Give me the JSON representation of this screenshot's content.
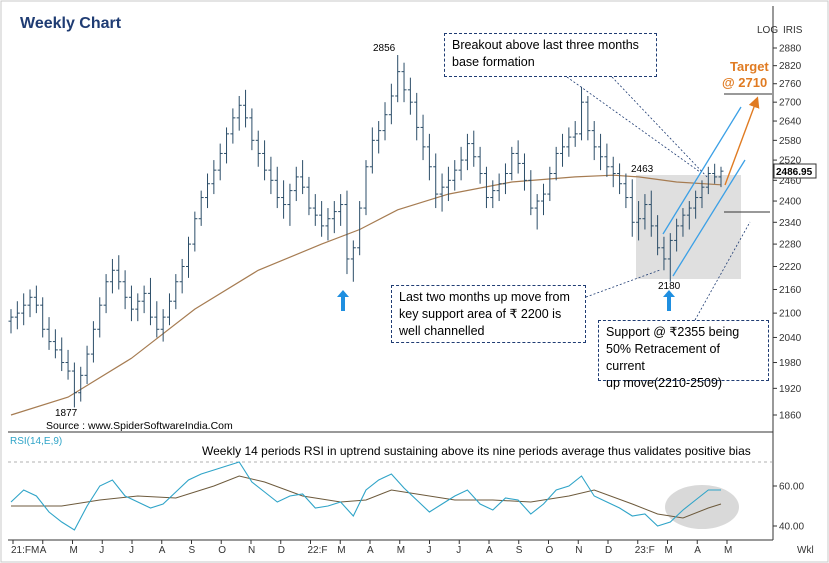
{
  "title": "Weekly Chart",
  "scale_mode": "LOG",
  "source_label": "IRIS",
  "last_price_label": "2486.95",
  "source_text": "Source : www.SpiderSoftwareIndia.Com",
  "rsi_label": "RSI(14,E,9)",
  "rsi_caption": "Weekly 14 periods RSI in uptrend sustaining above its nine periods average thus validates positive bias",
  "period_label": "Wkl",
  "target": {
    "title": "Target",
    "value": "@  2710"
  },
  "annotations": {
    "breakout": [
      "Breakout above last three months",
      "base formation"
    ],
    "up_move": [
      "Last two months up move from",
      "key support area of ₹ 2200 is",
      "well channelled"
    ],
    "support": [
      "Support   @   ₹2355   being",
      "50% Retracement of current",
      "up move(2210-2509)"
    ]
  },
  "price_labels": {
    "high": "2856",
    "low": "1877",
    "swing_high": "2463",
    "swing_low": "2180"
  },
  "colors": {
    "candle": "#2b4d68",
    "ma": "#a67c52",
    "channel": "#3ba0e6",
    "target": "#e07b22",
    "rsi": "#2fa4c8",
    "rsi_avg": "#6d5a3c",
    "arrow": "#1f8fe0",
    "title": "#1f3c73",
    "box_border": "#1f3c73"
  },
  "chart_data": [
    {
      "type": "candlestick",
      "title": "Weekly Chart",
      "scale": "log",
      "ylim": [
        1840,
        2910
      ],
      "y_ticks": [
        1860,
        1920,
        1980,
        2040,
        2100,
        2160,
        2220,
        2280,
        2340,
        2400,
        2460,
        2520,
        2580,
        2640,
        2700,
        2760,
        2820,
        2880
      ],
      "x_ticks": [
        "21:FM",
        "A",
        "M",
        "J",
        "J",
        "A",
        "S",
        "O",
        "N",
        "D",
        "22:F",
        "M",
        "A",
        "M",
        "J",
        "J",
        "A",
        "S",
        "O",
        "N",
        "D",
        "23:F",
        "M",
        "A",
        "M"
      ],
      "key_levels": {
        "high": 2856,
        "low": 1877,
        "swing_high": 2463,
        "swing_low": 2180,
        "support": 2355,
        "target": 2710,
        "last": 2486.95
      },
      "ohlc": [
        [
          1,
          2080,
          2110,
          2050,
          2090
        ],
        [
          2,
          2090,
          2130,
          2060,
          2100
        ],
        [
          3,
          2100,
          2150,
          2070,
          2120
        ],
        [
          4,
          2120,
          2160,
          2090,
          2140
        ],
        [
          5,
          2140,
          2170,
          2100,
          2120
        ],
        [
          6,
          2120,
          2140,
          2040,
          2060
        ],
        [
          7,
          2060,
          2090,
          2010,
          2030
        ],
        [
          8,
          2030,
          2060,
          1990,
          2010
        ],
        [
          9,
          2010,
          2040,
          1960,
          1980
        ],
        [
          10,
          1980,
          2010,
          1940,
          1960
        ],
        [
          11,
          1960,
          1980,
          1877,
          1910
        ],
        [
          12,
          1910,
          1970,
          1890,
          1950
        ],
        [
          13,
          1950,
          2020,
          1930,
          2000
        ],
        [
          14,
          2000,
          2080,
          1980,
          2060
        ],
        [
          15,
          2060,
          2140,
          2040,
          2120
        ],
        [
          16,
          2120,
          2200,
          2100,
          2180
        ],
        [
          17,
          2180,
          2240,
          2150,
          2210
        ],
        [
          18,
          2210,
          2250,
          2160,
          2180
        ],
        [
          19,
          2180,
          2210,
          2110,
          2140
        ],
        [
          20,
          2140,
          2170,
          2080,
          2110
        ],
        [
          21,
          2110,
          2150,
          2080,
          2130
        ],
        [
          22,
          2130,
          2170,
          2100,
          2150
        ],
        [
          23,
          2150,
          2190,
          2070,
          2090
        ],
        [
          24,
          2090,
          2130,
          2040,
          2060
        ],
        [
          25,
          2060,
          2110,
          2030,
          2090
        ],
        [
          26,
          2090,
          2150,
          2070,
          2130
        ],
        [
          27,
          2130,
          2200,
          2110,
          2180
        ],
        [
          28,
          2180,
          2240,
          2150,
          2220
        ],
        [
          29,
          2220,
          2300,
          2190,
          2280
        ],
        [
          30,
          2280,
          2370,
          2260,
          2350
        ],
        [
          31,
          2350,
          2430,
          2330,
          2410
        ],
        [
          32,
          2410,
          2480,
          2380,
          2450
        ],
        [
          33,
          2450,
          2520,
          2420,
          2490
        ],
        [
          34,
          2490,
          2570,
          2460,
          2540
        ],
        [
          35,
          2540,
          2620,
          2510,
          2600
        ],
        [
          36,
          2600,
          2680,
          2570,
          2650
        ],
        [
          37,
          2650,
          2720,
          2610,
          2690
        ],
        [
          38,
          2690,
          2740,
          2620,
          2650
        ],
        [
          39,
          2650,
          2680,
          2550,
          2580
        ],
        [
          40,
          2580,
          2610,
          2500,
          2540
        ],
        [
          41,
          2540,
          2580,
          2460,
          2490
        ],
        [
          42,
          2490,
          2530,
          2420,
          2460
        ],
        [
          43,
          2460,
          2500,
          2380,
          2410
        ],
        [
          44,
          2410,
          2460,
          2350,
          2390
        ],
        [
          45,
          2390,
          2450,
          2330,
          2430
        ],
        [
          46,
          2430,
          2500,
          2400,
          2470
        ],
        [
          47,
          2470,
          2520,
          2420,
          2440
        ],
        [
          48,
          2440,
          2470,
          2360,
          2380
        ],
        [
          49,
          2380,
          2420,
          2330,
          2360
        ],
        [
          50,
          2360,
          2400,
          2300,
          2330
        ],
        [
          51,
          2330,
          2380,
          2290,
          2350
        ],
        [
          52,
          2350,
          2400,
          2310,
          2370
        ],
        [
          53,
          2370,
          2420,
          2330,
          2390
        ],
        [
          54,
          2390,
          2430,
          2200,
          2240
        ],
        [
          55,
          2240,
          2290,
          2180,
          2270
        ],
        [
          56,
          2270,
          2400,
          2250,
          2380
        ],
        [
          57,
          2380,
          2520,
          2360,
          2500
        ],
        [
          58,
          2500,
          2620,
          2480,
          2580
        ],
        [
          59,
          2580,
          2640,
          2540,
          2610
        ],
        [
          60,
          2610,
          2700,
          2580,
          2660
        ],
        [
          61,
          2660,
          2760,
          2630,
          2720
        ],
        [
          62,
          2720,
          2856,
          2700,
          2800
        ],
        [
          63,
          2800,
          2830,
          2700,
          2740
        ],
        [
          64,
          2740,
          2780,
          2660,
          2700
        ],
        [
          65,
          2700,
          2730,
          2580,
          2620
        ],
        [
          66,
          2620,
          2660,
          2520,
          2560
        ],
        [
          67,
          2560,
          2600,
          2460,
          2500
        ],
        [
          68,
          2500,
          2540,
          2380,
          2420
        ],
        [
          69,
          2420,
          2480,
          2370,
          2440
        ],
        [
          70,
          2440,
          2500,
          2400,
          2460
        ],
        [
          71,
          2460,
          2520,
          2430,
          2490
        ],
        [
          72,
          2490,
          2560,
          2460,
          2520
        ],
        [
          73,
          2520,
          2600,
          2490,
          2570
        ],
        [
          74,
          2570,
          2610,
          2500,
          2530
        ],
        [
          75,
          2530,
          2560,
          2450,
          2480
        ],
        [
          76,
          2480,
          2500,
          2380,
          2410
        ],
        [
          77,
          2410,
          2460,
          2380,
          2430
        ],
        [
          78,
          2430,
          2480,
          2400,
          2450
        ],
        [
          79,
          2450,
          2510,
          2420,
          2480
        ],
        [
          80,
          2480,
          2560,
          2460,
          2540
        ],
        [
          81,
          2540,
          2580,
          2480,
          2510
        ],
        [
          82,
          2510,
          2540,
          2430,
          2460
        ],
        [
          83,
          2460,
          2490,
          2360,
          2380
        ],
        [
          84,
          2380,
          2420,
          2320,
          2400
        ],
        [
          85,
          2400,
          2450,
          2360,
          2420
        ],
        [
          86,
          2420,
          2500,
          2400,
          2480
        ],
        [
          87,
          2480,
          2560,
          2460,
          2540
        ],
        [
          88,
          2540,
          2600,
          2500,
          2560
        ],
        [
          89,
          2560,
          2620,
          2530,
          2590
        ],
        [
          90,
          2590,
          2640,
          2560,
          2600
        ],
        [
          91,
          2600,
          2750,
          2580,
          2700
        ],
        [
          92,
          2700,
          2720,
          2580,
          2610
        ],
        [
          93,
          2610,
          2640,
          2520,
          2560
        ],
        [
          94,
          2560,
          2600,
          2490,
          2530
        ],
        [
          95,
          2530,
          2570,
          2470,
          2500
        ],
        [
          96,
          2500,
          2530,
          2440,
          2480
        ],
        [
          97,
          2480,
          2510,
          2420,
          2450
        ],
        [
          98,
          2450,
          2480,
          2380,
          2410
        ],
        [
          99,
          2410,
          2463,
          2300,
          2340
        ],
        [
          100,
          2340,
          2400,
          2290,
          2350
        ],
        [
          101,
          2350,
          2420,
          2320,
          2390
        ],
        [
          102,
          2390,
          2430,
          2300,
          2330
        ],
        [
          103,
          2330,
          2360,
          2250,
          2270
        ],
        [
          104,
          2270,
          2300,
          2210,
          2240
        ],
        [
          105,
          2240,
          2310,
          2180,
          2290
        ],
        [
          106,
          2290,
          2350,
          2260,
          2330
        ],
        [
          107,
          2330,
          2380,
          2300,
          2360
        ],
        [
          108,
          2360,
          2400,
          2320,
          2380
        ],
        [
          109,
          2380,
          2430,
          2350,
          2410
        ],
        [
          110,
          2410,
          2460,
          2380,
          2440
        ],
        [
          111,
          2440,
          2500,
          2420,
          2480
        ],
        [
          112,
          2480,
          2509,
          2450,
          2470
        ],
        [
          113,
          2470,
          2500,
          2440,
          2487
        ]
      ],
      "moving_average": [
        [
          1,
          1860
        ],
        [
          10,
          1900
        ],
        [
          20,
          1990
        ],
        [
          30,
          2110
        ],
        [
          40,
          2210
        ],
        [
          50,
          2280
        ],
        [
          56,
          2320
        ],
        [
          62,
          2375
        ],
        [
          70,
          2420
        ],
        [
          80,
          2455
        ],
        [
          90,
          2470
        ],
        [
          96,
          2475
        ],
        [
          100,
          2470
        ],
        [
          106,
          2455
        ],
        [
          113,
          2447
        ]
      ]
    },
    {
      "type": "line",
      "title": "RSI(14,E,9)",
      "ylim": [
        30,
        75
      ],
      "y_ticks": [
        40,
        60
      ],
      "series": [
        {
          "name": "RSI(14)",
          "values": [
            [
              1,
              52
            ],
            [
              3,
              58
            ],
            [
              5,
              55
            ],
            [
              7,
              47
            ],
            [
              9,
              42
            ],
            [
              11,
              38
            ],
            [
              13,
              50
            ],
            [
              15,
              60
            ],
            [
              17,
              63
            ],
            [
              19,
              55
            ],
            [
              21,
              52
            ],
            [
              23,
              49
            ],
            [
              25,
              51
            ],
            [
              27,
              57
            ],
            [
              29,
              63
            ],
            [
              31,
              66
            ],
            [
              33,
              68
            ],
            [
              35,
              70
            ],
            [
              37,
              72
            ],
            [
              39,
              62
            ],
            [
              41,
              57
            ],
            [
              43,
              52
            ],
            [
              45,
              55
            ],
            [
              47,
              56
            ],
            [
              49,
              49
            ],
            [
              51,
              50
            ],
            [
              53,
              52
            ],
            [
              55,
              45
            ],
            [
              57,
              58
            ],
            [
              59,
              63
            ],
            [
              61,
              66
            ],
            [
              63,
              59
            ],
            [
              65,
              53
            ],
            [
              67,
              47
            ],
            [
              69,
              51
            ],
            [
              71,
              55
            ],
            [
              73,
              58
            ],
            [
              75,
              51
            ],
            [
              77,
              48
            ],
            [
              79,
              54
            ],
            [
              81,
              53
            ],
            [
              83,
              46
            ],
            [
              85,
              51
            ],
            [
              87,
              58
            ],
            [
              89,
              60
            ],
            [
              91,
              65
            ],
            [
              93,
              55
            ],
            [
              95,
              52
            ],
            [
              97,
              49
            ],
            [
              99,
              45
            ],
            [
              101,
              46
            ],
            [
              103,
              40
            ],
            [
              105,
              42
            ],
            [
              107,
              48
            ],
            [
              109,
              53
            ],
            [
              111,
              58
            ],
            [
              113,
              58
            ]
          ]
        },
        {
          "name": "Average(9)",
          "values": [
            [
              1,
              50
            ],
            [
              9,
              50
            ],
            [
              15,
              53
            ],
            [
              21,
              55
            ],
            [
              27,
              54
            ],
            [
              33,
              60
            ],
            [
              37,
              65
            ],
            [
              41,
              62
            ],
            [
              47,
              55
            ],
            [
              53,
              52
            ],
            [
              57,
              53
            ],
            [
              61,
              58
            ],
            [
              65,
              56
            ],
            [
              71,
              53
            ],
            [
              77,
              53
            ],
            [
              83,
              52
            ],
            [
              89,
              55
            ],
            [
              93,
              58
            ],
            [
              99,
              51
            ],
            [
              103,
              46
            ],
            [
              107,
              44
            ],
            [
              111,
              49
            ],
            [
              113,
              51
            ]
          ]
        }
      ]
    }
  ]
}
